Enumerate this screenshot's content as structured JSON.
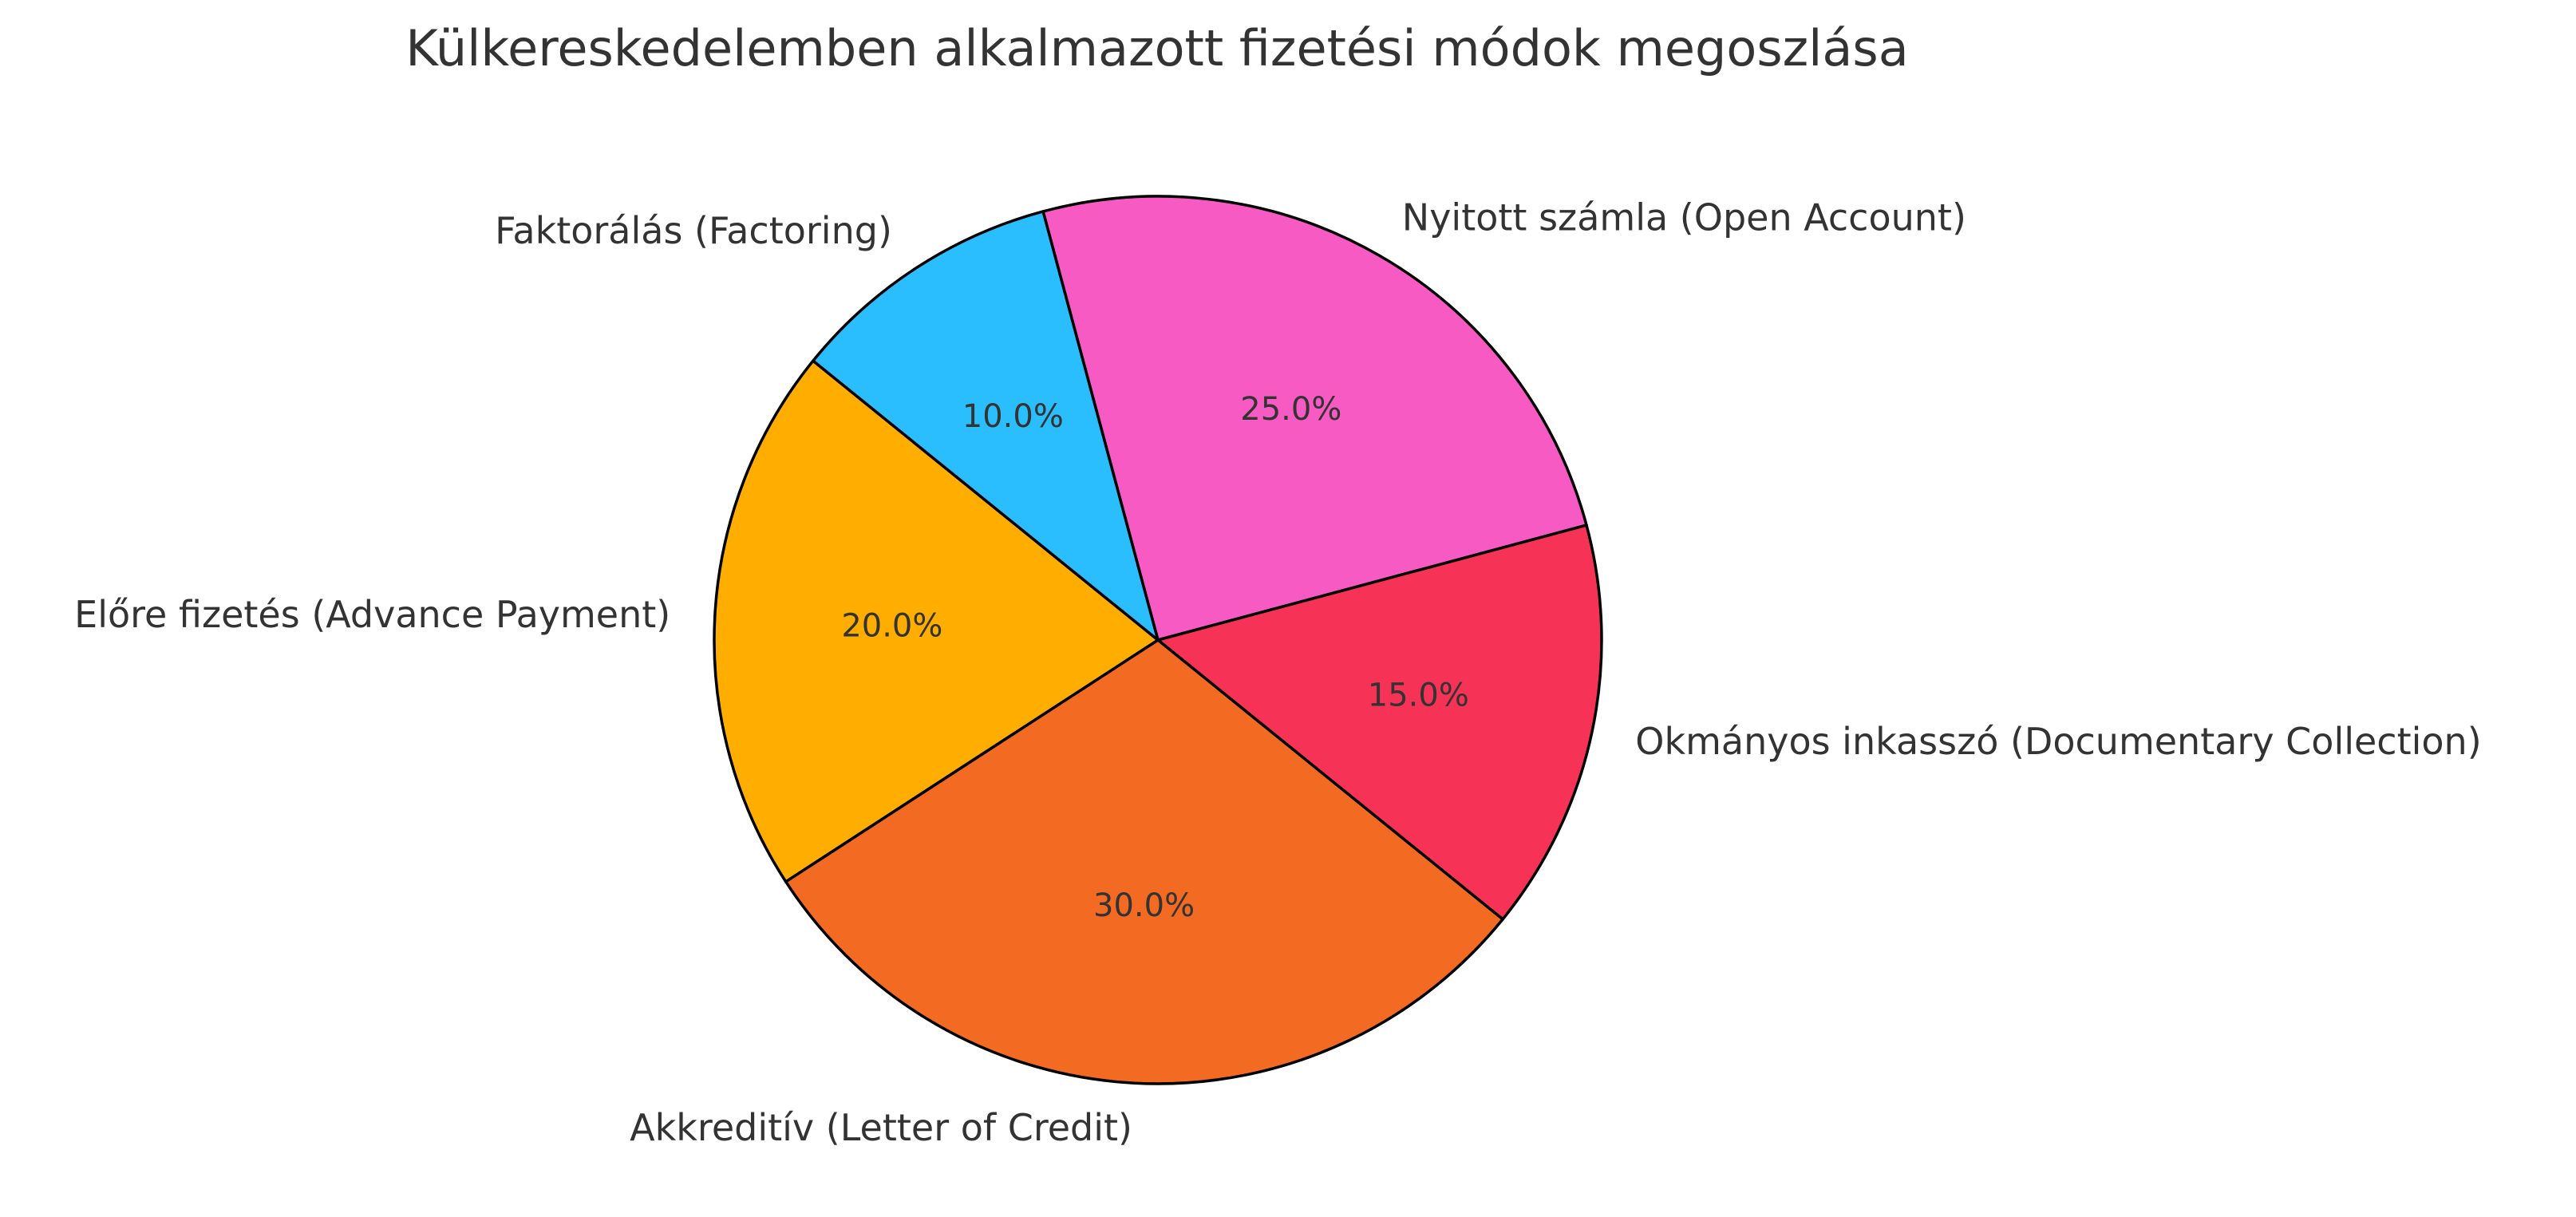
{
  "chart_data": {
    "type": "pie",
    "title": "Külkereskedelemben alkalmazott fizetési módok megoszlása",
    "slices": [
      {
        "label": "Nyitott számla (Open Account)",
        "value": 25,
        "pct_label": "25.0%",
        "color": "#F75AC2"
      },
      {
        "label": "Okmányos inkasszó (Documentary Collection)",
        "value": 15,
        "pct_label": "15.0%",
        "color": "#F63257"
      },
      {
        "label": "Akkreditív (Letter of Credit)",
        "value": 30,
        "pct_label": "30.0%",
        "color": "#F36B22"
      },
      {
        "label": "Előre fizetés (Advance Payment)",
        "value": 20,
        "pct_label": "20.0%",
        "color": "#FFAE00"
      },
      {
        "label": "Faktorálás (Factoring)",
        "value": 10,
        "pct_label": "10.0%",
        "color": "#2BBEFF"
      }
    ],
    "start_angle": 105,
    "direction": "clockwise"
  }
}
